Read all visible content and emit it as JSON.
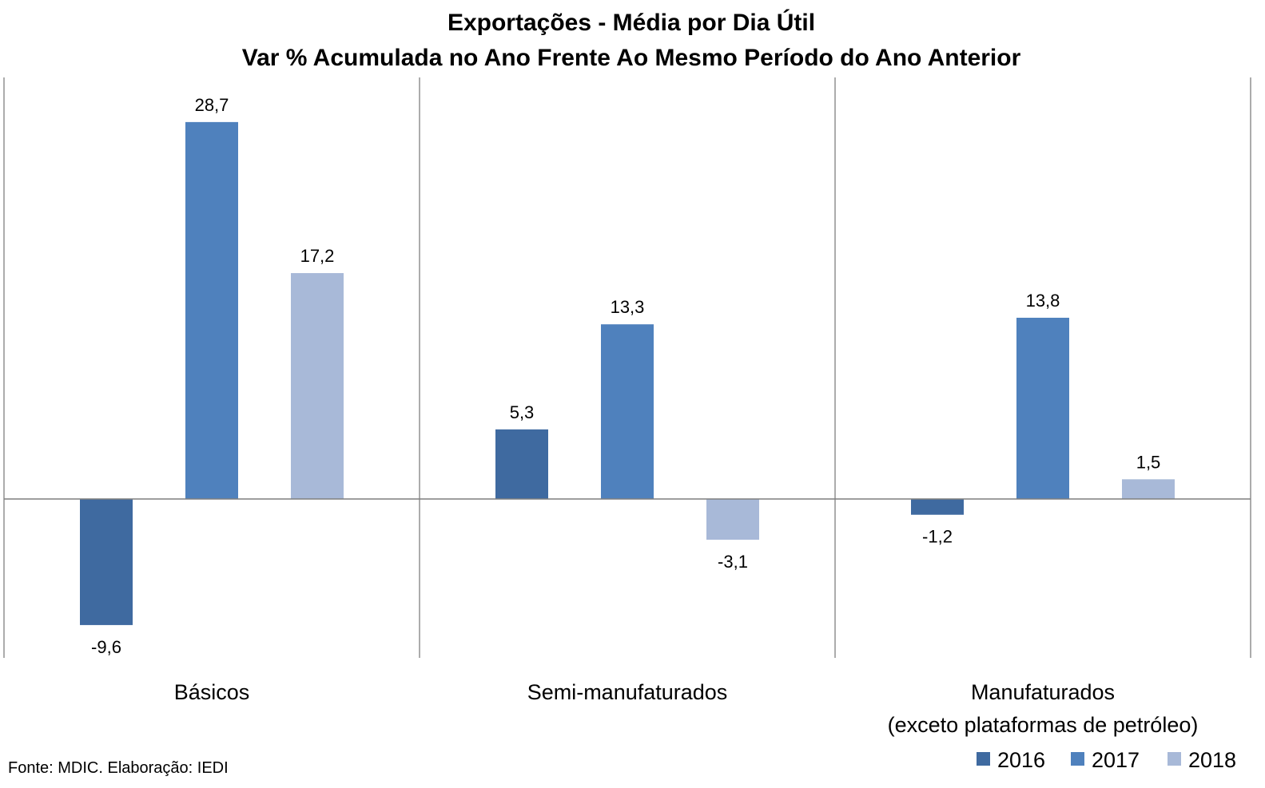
{
  "chart_data": {
    "type": "bar",
    "title": "Exportações - Média por Dia Útil",
    "subtitle": "Var % Acumulada no Ano Frente Ao Mesmo Período do Ano Anterior",
    "categories": [
      [
        "Básicos"
      ],
      [
        "Semi-manufaturados"
      ],
      [
        "Manufaturados",
        "(exceto plataformas de petróleo)"
      ]
    ],
    "series": [
      {
        "name": "2016",
        "color": "#3f6aa0",
        "values": [
          -9.6,
          5.3,
          -1.2
        ],
        "labels": [
          "-9,6",
          "5,3",
          "-1,2"
        ]
      },
      {
        "name": "2017",
        "color": "#4f81bd",
        "values": [
          28.7,
          13.3,
          13.8
        ],
        "labels": [
          "28,7",
          "13,3",
          "13,8"
        ]
      },
      {
        "name": "2018",
        "color": "#a8b9d8",
        "values": [
          17.2,
          -3.1,
          1.5
        ],
        "labels": [
          "17,2",
          "-3,1",
          "1,5"
        ]
      }
    ],
    "ylim": [
      -12,
      32
    ],
    "grid": false,
    "legend_position": "bottom-right",
    "footnote": "Fonte: MDIC. Elaboração: IEDI"
  }
}
